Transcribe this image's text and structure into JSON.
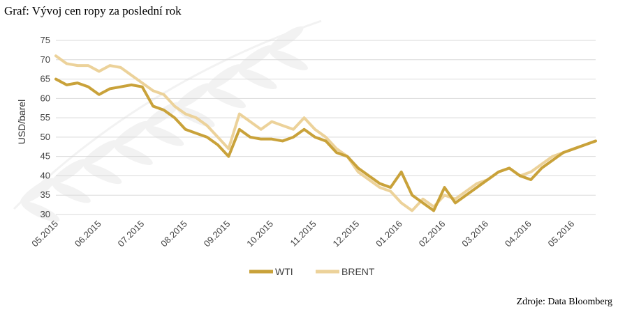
{
  "title": "Graf: Vývoj cen ropy za poslední rok",
  "source": "Zdroje: Data Bloomberg",
  "colors": {
    "WTI": "#c9a23a",
    "BRENT": "#ecd29a",
    "grid": "#d9d9d9"
  },
  "chart_data": {
    "type": "line",
    "ylabel": "USD/barel",
    "xlabel": "",
    "ylim": [
      30,
      75
    ],
    "yticks": [
      30,
      35,
      40,
      45,
      50,
      55,
      60,
      65,
      70,
      75
    ],
    "grid": true,
    "legend_position": "bottom-center",
    "categories": [
      "05.2015",
      "06.2015",
      "07.2015",
      "08.2015",
      "09.2015",
      "10.2015",
      "11.2015",
      "12.2015",
      "01.2016",
      "02.2016",
      "03.2016",
      "04.2016",
      "05.2016"
    ],
    "x": [
      0,
      0.25,
      0.5,
      0.75,
      1,
      1.25,
      1.5,
      1.75,
      2,
      2.25,
      2.5,
      2.75,
      3,
      3.25,
      3.5,
      3.75,
      4,
      4.25,
      4.5,
      4.75,
      5,
      5.25,
      5.5,
      5.75,
      6,
      6.25,
      6.5,
      6.75,
      7,
      7.25,
      7.5,
      7.75,
      8,
      8.25,
      8.5,
      8.75,
      9,
      9.25,
      9.5,
      9.75,
      10,
      10.25,
      10.5,
      10.75,
      11,
      11.25,
      11.5,
      11.75,
      12,
      12.25,
      12.5
    ],
    "series": [
      {
        "name": "WTI",
        "values": [
          65,
          63.5,
          64,
          63,
          61,
          62.5,
          63,
          63.5,
          63,
          58,
          57,
          55,
          52,
          51,
          50,
          48,
          45,
          52,
          50,
          49.5,
          49.5,
          49,
          50,
          52,
          50,
          49,
          46,
          45,
          42,
          40,
          38,
          37,
          41,
          35,
          33,
          31,
          37,
          33,
          35,
          37,
          39,
          41,
          42,
          40,
          39,
          42,
          44,
          46,
          47,
          48,
          49
        ]
      },
      {
        "name": "BRENT",
        "values": [
          71,
          69,
          68.5,
          68.5,
          67,
          68.5,
          68,
          66,
          64,
          62,
          61,
          58,
          56,
          55,
          53,
          50,
          47,
          56,
          54,
          52,
          54,
          53,
          52,
          55,
          52,
          50,
          47,
          45,
          41,
          39,
          37,
          36,
          33,
          31,
          34,
          32,
          35,
          34,
          36,
          38,
          39,
          41,
          42,
          40,
          41,
          43,
          45,
          46,
          47,
          48,
          49
        ]
      }
    ]
  }
}
